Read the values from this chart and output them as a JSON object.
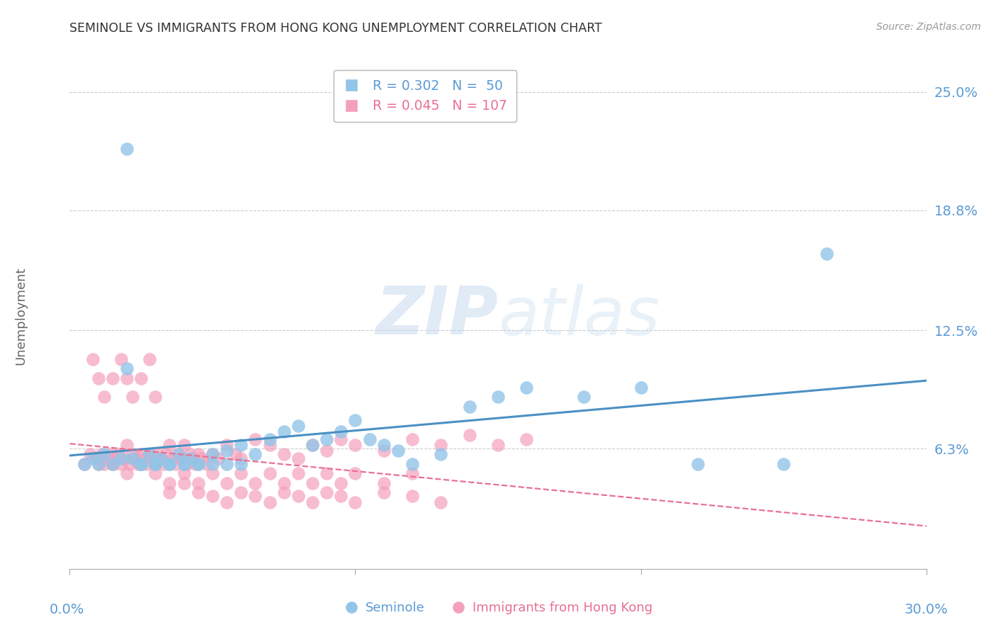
{
  "title": "SEMINOLE VS IMMIGRANTS FROM HONG KONG UNEMPLOYMENT CORRELATION CHART",
  "source": "Source: ZipAtlas.com",
  "ylabel": "Unemployment",
  "yticks": [
    0.063,
    0.125,
    0.188,
    0.25
  ],
  "ytick_labels": [
    "6.3%",
    "12.5%",
    "18.8%",
    "25.0%"
  ],
  "xrange": [
    0.0,
    0.3
  ],
  "yrange": [
    0.0,
    0.265
  ],
  "watermark_zip": "ZIP",
  "watermark_atlas": "atlas",
  "series1_color": "#92C5E8",
  "series2_color": "#F4A0BC",
  "trendline1_color": "#4A90C4",
  "trendline2_color": "#E87090",
  "grid_color": "#cccccc",
  "axis_color": "#aaaaaa",
  "label_color": "#5B9BD5",
  "seminole_x": [
    0.005,
    0.008,
    0.01,
    0.012,
    0.015,
    0.018,
    0.02,
    0.022,
    0.025,
    0.028,
    0.03,
    0.032,
    0.035,
    0.038,
    0.04,
    0.042,
    0.045,
    0.05,
    0.055,
    0.06,
    0.065,
    0.07,
    0.075,
    0.08,
    0.085,
    0.09,
    0.095,
    0.1,
    0.105,
    0.11,
    0.115,
    0.12,
    0.13,
    0.14,
    0.15,
    0.16,
    0.18,
    0.2,
    0.22,
    0.25,
    0.265,
    0.02,
    0.025,
    0.03,
    0.035,
    0.04,
    0.045,
    0.05,
    0.055,
    0.06
  ],
  "seminole_y": [
    0.055,
    0.058,
    0.055,
    0.06,
    0.055,
    0.058,
    0.22,
    0.058,
    0.055,
    0.06,
    0.055,
    0.058,
    0.055,
    0.06,
    0.055,
    0.058,
    0.055,
    0.06,
    0.062,
    0.065,
    0.06,
    0.068,
    0.072,
    0.075,
    0.065,
    0.068,
    0.072,
    0.078,
    0.068,
    0.065,
    0.062,
    0.055,
    0.06,
    0.085,
    0.09,
    0.095,
    0.09,
    0.095,
    0.055,
    0.055,
    0.165,
    0.105,
    0.055,
    0.055,
    0.055,
    0.055,
    0.055,
    0.055,
    0.055,
    0.055
  ],
  "hk_x": [
    0.005,
    0.007,
    0.009,
    0.01,
    0.011,
    0.012,
    0.013,
    0.014,
    0.015,
    0.016,
    0.017,
    0.018,
    0.019,
    0.02,
    0.021,
    0.022,
    0.023,
    0.024,
    0.025,
    0.026,
    0.027,
    0.028,
    0.029,
    0.03,
    0.031,
    0.032,
    0.033,
    0.034,
    0.035,
    0.036,
    0.037,
    0.038,
    0.039,
    0.04,
    0.041,
    0.042,
    0.043,
    0.044,
    0.045,
    0.046,
    0.048,
    0.05,
    0.052,
    0.055,
    0.058,
    0.06,
    0.065,
    0.07,
    0.075,
    0.08,
    0.085,
    0.09,
    0.095,
    0.1,
    0.11,
    0.12,
    0.13,
    0.14,
    0.15,
    0.16,
    0.008,
    0.01,
    0.012,
    0.015,
    0.018,
    0.02,
    0.022,
    0.025,
    0.028,
    0.03,
    0.035,
    0.04,
    0.045,
    0.05,
    0.055,
    0.06,
    0.065,
    0.07,
    0.075,
    0.08,
    0.085,
    0.09,
    0.095,
    0.1,
    0.11,
    0.12,
    0.13,
    0.015,
    0.02,
    0.025,
    0.03,
    0.035,
    0.04,
    0.045,
    0.05,
    0.055,
    0.06,
    0.065,
    0.07,
    0.075,
    0.08,
    0.085,
    0.09,
    0.095,
    0.1,
    0.11,
    0.12
  ],
  "hk_y": [
    0.055,
    0.06,
    0.058,
    0.055,
    0.06,
    0.055,
    0.058,
    0.06,
    0.055,
    0.058,
    0.06,
    0.055,
    0.058,
    0.065,
    0.055,
    0.06,
    0.058,
    0.055,
    0.06,
    0.058,
    0.055,
    0.06,
    0.058,
    0.055,
    0.06,
    0.058,
    0.055,
    0.06,
    0.065,
    0.058,
    0.055,
    0.06,
    0.058,
    0.065,
    0.055,
    0.06,
    0.058,
    0.055,
    0.06,
    0.058,
    0.055,
    0.06,
    0.058,
    0.065,
    0.06,
    0.058,
    0.068,
    0.065,
    0.06,
    0.058,
    0.065,
    0.062,
    0.068,
    0.065,
    0.062,
    0.068,
    0.065,
    0.07,
    0.065,
    0.068,
    0.11,
    0.1,
    0.09,
    0.1,
    0.11,
    0.1,
    0.09,
    0.1,
    0.11,
    0.09,
    0.04,
    0.045,
    0.04,
    0.038,
    0.035,
    0.04,
    0.038,
    0.035,
    0.04,
    0.038,
    0.035,
    0.04,
    0.038,
    0.035,
    0.04,
    0.038,
    0.035,
    0.055,
    0.05,
    0.055,
    0.05,
    0.045,
    0.05,
    0.045,
    0.05,
    0.045,
    0.05,
    0.045,
    0.05,
    0.045,
    0.05,
    0.045,
    0.05,
    0.045,
    0.05,
    0.045,
    0.05
  ]
}
